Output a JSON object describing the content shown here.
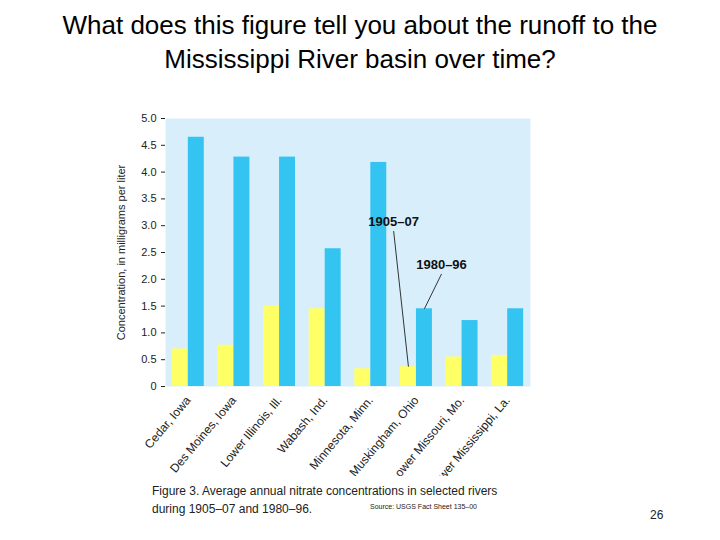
{
  "title": "What does this figure tell you about the runoff to the Mississippi River basin over time?",
  "caption": "Figure 3.  Average annual nitrate concentrations in selected rivers during 1905–07 and 1980–96.",
  "source": "Source: USGS Fact Sheet 135–00",
  "page": "26",
  "chart_data": {
    "type": "bar",
    "y_label": "Concentration, in milligrams per liter",
    "categories": [
      "Cedar, Iowa",
      "Des Moines, Iowa",
      "Lower Illinois, Ill.",
      "Wabash, Ind.",
      "Minnesota, Minn.",
      "Muskingham, Ohio",
      "Lower Missouri, Mo.",
      "Lower Mississippi, La."
    ],
    "series": [
      {
        "name": "1905–07",
        "color": "#ffff66",
        "values": [
          0.7,
          0.77,
          1.5,
          1.45,
          0.33,
          0.37,
          0.55,
          0.58
        ]
      },
      {
        "name": "1980–96",
        "color": "#33c4f2",
        "values": [
          4.65,
          4.28,
          4.28,
          2.57,
          4.18,
          1.45,
          1.23,
          1.45
        ]
      }
    ],
    "ylim": [
      0,
      5
    ],
    "yticks": [
      0,
      0.5,
      {
        "value": 1,
        "label": "1.0"
      },
      1.5,
      {
        "value": 2,
        "label": "2.0"
      },
      2.5,
      {
        "value": 3,
        "label": "3.0"
      },
      3.5,
      {
        "value": 4,
        "label": "4.0"
      },
      4.5,
      {
        "value": 5,
        "label": "5.0"
      }
    ],
    "grid": false
  }
}
